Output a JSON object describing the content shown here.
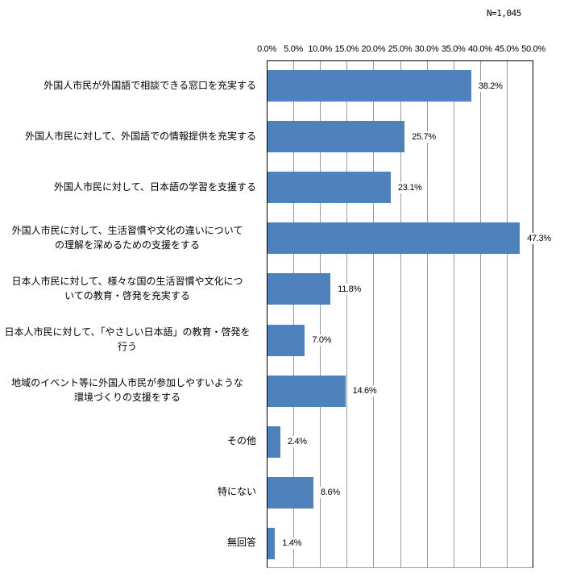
{
  "chart_data": {
    "type": "bar",
    "orientation": "horizontal",
    "title": "",
    "annotation": "N=1,045",
    "xlabel": "",
    "ylabel": "",
    "xlim": [
      0,
      50
    ],
    "grid": true,
    "legend": null,
    "tick_labels": [
      "0.0%",
      "5.0%",
      "10.0%",
      "15.0%",
      "20.0%",
      "25.0%",
      "30.0%",
      "35.0%",
      "40.0%",
      "45.0%",
      "50.0%"
    ],
    "categories": [
      "外国人市民が外国語で相談できる窓口を充実する",
      "外国人市民に対して、外国語での情報提供を充実する",
      "外国人市民に対して、日本語の学習を支援する",
      "外国人市民に対して、生活習慣や文化の違いについての理解を深めるための支援をする",
      "日本人市民に対して、様々な国の生活習慣や文化についての教育・啓発を充実する",
      "日本人市民に対して、「やさしい日本語」の教育・啓発を行う",
      "地域のイベント等に外国人市民が参加しやすいような環境づくりの支援をする",
      "その他",
      "特にない",
      "無回答"
    ],
    "values": [
      38.2,
      25.7,
      23.1,
      47.3,
      11.8,
      7.0,
      14.6,
      2.4,
      8.6,
      1.4
    ],
    "value_labels": [
      "38.2%",
      "25.7%",
      "23.1%",
      "47.3%",
      "11.8%",
      "7.0%",
      "14.6%",
      "2.4%",
      "8.6%",
      "1.4%"
    ],
    "bar_color": "#4f81bd"
  },
  "display": {
    "n_label": "N=1,045",
    "category_lines": [
      [
        "外国人市民が外国語で相談できる窓口を充実する"
      ],
      [
        "外国人市民に対して、外国語での情報提供を充実する"
      ],
      [
        "外国人市民に対して、日本語の学習を支援する"
      ],
      [
        "外国人市民に対して、生活習慣や文化の違いについて",
        "の理解を深めるための支援をする"
      ],
      [
        "日本人市民に対して、様々な国の生活習慣や文化につ",
        "いての教育・啓発を充実する"
      ],
      [
        "日本人市民に対して、「やさしい日本語」の教育・啓発を",
        "行う"
      ],
      [
        "地域のイベント等に外国人市民が参加しやすいような",
        "環境づくりの支援をする"
      ],
      [
        "その他"
      ],
      [
        "特にない"
      ],
      [
        "無回答"
      ]
    ]
  }
}
